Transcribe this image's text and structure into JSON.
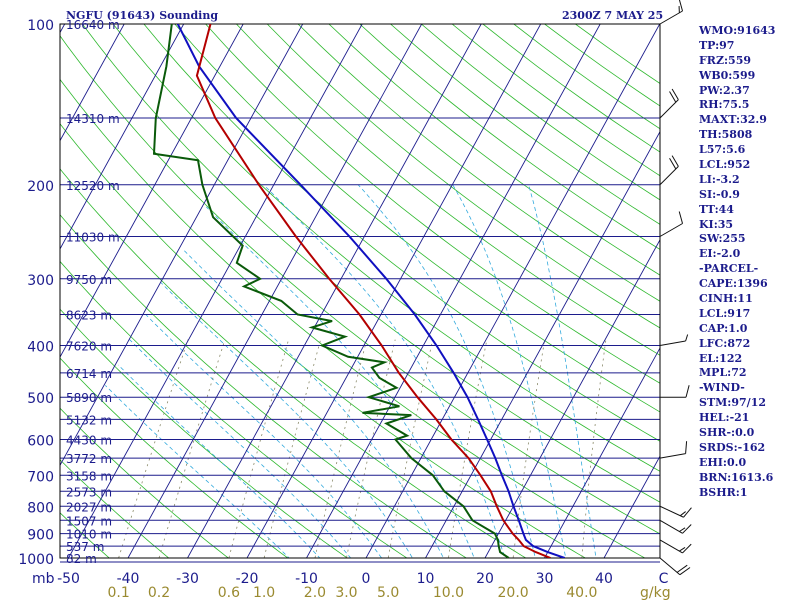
{
  "header": {
    "station_title": "NGFU (91643) Sounding",
    "time_title": "2300Z  7 MAY 25"
  },
  "indices": [
    "WMO:91643",
    "TP:97",
    "FRZ:559",
    "WB0:599",
    "PW:2.37",
    "RH:75.5",
    "MAXT:32.9",
    "TH:5808",
    "L57:5.6",
    "LCL:952",
    "LI:-3.2",
    "SI:-0.9",
    "TT:44",
    "KI:35",
    "SW:255",
    "EI:-2.0",
    "-PARCEL-",
    "CAPE:1396",
    "CINH:11",
    "LCL:917",
    "CAP:1.0",
    "LFC:872",
    "EL:122",
    "MPL:72",
    "-WIND-",
    "STM:97/12",
    "HEL:-21",
    "SHR-:0.0",
    "SRDS:-162",
    "EHI:0.0",
    "BRN:1613.6",
    "BSHR:1"
  ],
  "colors": {
    "isobar": "#1c1c8c",
    "isotherm": "#1c1c8c",
    "dry_adiabat": "#2eb82e",
    "moist_adiabat": "#33aadd",
    "mixing_ratio": "#8a8a6a",
    "temperature": "#b40000",
    "dewpoint": "#0a5a0a",
    "parcel": "#1010c0",
    "wind": "#111111",
    "label": "#1c1c8c",
    "mixing_label": "#9a8a30"
  },
  "chart_data": {
    "type": "skew-t log-p sounding",
    "title": "NGFU (91643) Sounding",
    "time": "2300Z  7 MAY 25",
    "y_axis_label": "mb",
    "mixing_ratio_unit": "g/kg",
    "pressure_range_mb": [
      1000,
      100
    ],
    "temperature_range_c": [
      -50,
      50
    ],
    "pressure_ticks": [
      {
        "p": 100,
        "label": "100"
      },
      {
        "p": 200,
        "label": "200"
      },
      {
        "p": 300,
        "label": "300"
      },
      {
        "p": 400,
        "label": "400"
      },
      {
        "p": 500,
        "label": "500"
      },
      {
        "p": 600,
        "label": "600"
      },
      {
        "p": 700,
        "label": "700"
      },
      {
        "p": 800,
        "label": "800"
      },
      {
        "p": 900,
        "label": "900"
      },
      {
        "p": 1000,
        "label": "1000"
      }
    ],
    "temperature_ticks": [
      {
        "t": -50,
        "label": "-50"
      },
      {
        "t": -40,
        "label": "-40"
      },
      {
        "t": -30,
        "label": "-30"
      },
      {
        "t": -20,
        "label": "-20"
      },
      {
        "t": -10,
        "label": "-10"
      },
      {
        "t": 0,
        "label": "0"
      },
      {
        "t": 10,
        "label": "10"
      },
      {
        "t": 20,
        "label": "20"
      },
      {
        "t": 30,
        "label": "30"
      },
      {
        "t": 40,
        "label": "40"
      },
      {
        "t": 50,
        "label": "C"
      }
    ],
    "mixing_ratio_ticks": [
      {
        "w": 0.1,
        "label": "0.1"
      },
      {
        "w": 0.2,
        "label": "0.2"
      },
      {
        "w": 0.6,
        "label": "0.6"
      },
      {
        "w": 1.0,
        "label": "1.0"
      },
      {
        "w": 2.0,
        "label": "2.0"
      },
      {
        "w": 3.0,
        "label": "3.0"
      },
      {
        "w": 5.0,
        "label": "5.0"
      },
      {
        "w": 10.0,
        "label": "10.0"
      },
      {
        "w": 20.0,
        "label": "20.0"
      },
      {
        "w": 40.0,
        "label": "40.0"
      }
    ],
    "height_levels": [
      {
        "p": 100,
        "label": "16640 m"
      },
      {
        "p": 150,
        "label": "14310 m"
      },
      {
        "p": 200,
        "label": "12520 m"
      },
      {
        "p": 250,
        "label": "11030 m"
      },
      {
        "p": 300,
        "label": "9750 m"
      },
      {
        "p": 350,
        "label": "8623 m"
      },
      {
        "p": 400,
        "label": "7620 m"
      },
      {
        "p": 450,
        "label": "6714 m"
      },
      {
        "p": 500,
        "label": "5890 m"
      },
      {
        "p": 550,
        "label": "5132 m"
      },
      {
        "p": 600,
        "label": "4430 m"
      },
      {
        "p": 650,
        "label": "3772 m"
      },
      {
        "p": 700,
        "label": "3158 m"
      },
      {
        "p": 750,
        "label": "2573 m"
      },
      {
        "p": 800,
        "label": "2027 m"
      },
      {
        "p": 850,
        "label": "1507 m"
      },
      {
        "p": 900,
        "label": "1010 m"
      },
      {
        "p": 950,
        "label": "537 m"
      },
      {
        "p": 1000,
        "label": "82 m"
      }
    ],
    "temperature_profile": [
      [
        1000,
        31.0
      ],
      [
        975,
        28.0
      ],
      [
        950,
        25.4
      ],
      [
        925,
        24.0
      ],
      [
        900,
        22.4
      ],
      [
        850,
        19.6
      ],
      [
        800,
        17.2
      ],
      [
        750,
        14.8
      ],
      [
        700,
        11.6
      ],
      [
        650,
        8.0
      ],
      [
        600,
        3.4
      ],
      [
        550,
        -1.0
      ],
      [
        500,
        -6.2
      ],
      [
        450,
        -11.6
      ],
      [
        400,
        -17.0
      ],
      [
        350,
        -23.6
      ],
      [
        300,
        -32.0
      ],
      [
        250,
        -41.5
      ],
      [
        200,
        -52.5
      ],
      [
        150,
        -66.0
      ],
      [
        125,
        -73.0
      ],
      [
        100,
        -75.5
      ]
    ],
    "dewpoint_profile": [
      [
        1000,
        24.0
      ],
      [
        975,
        22.0
      ],
      [
        950,
        21.2
      ],
      [
        925,
        20.5
      ],
      [
        900,
        19.4
      ],
      [
        850,
        14.4
      ],
      [
        800,
        11.6
      ],
      [
        750,
        7.0
      ],
      [
        700,
        3.6
      ],
      [
        650,
        -1.6
      ],
      [
        600,
        -6.0
      ],
      [
        590,
        -4.4
      ],
      [
        560,
        -9.0
      ],
      [
        540,
        -5.6
      ],
      [
        535,
        -14.0
      ],
      [
        520,
        -8.4
      ],
      [
        500,
        -14.4
      ],
      [
        480,
        -10.6
      ],
      [
        460,
        -14.4
      ],
      [
        440,
        -16.6
      ],
      [
        430,
        -15.0
      ],
      [
        420,
        -21.6
      ],
      [
        400,
        -27.0
      ],
      [
        385,
        -24.0
      ],
      [
        370,
        -30.4
      ],
      [
        360,
        -27.6
      ],
      [
        350,
        -34.0
      ],
      [
        330,
        -38.0
      ],
      [
        310,
        -45.6
      ],
      [
        300,
        -43.6
      ],
      [
        280,
        -49.0
      ],
      [
        260,
        -49.6
      ],
      [
        230,
        -57.2
      ],
      [
        200,
        -62.0
      ],
      [
        180,
        -65.0
      ],
      [
        175,
        -73.0
      ],
      [
        150,
        -76.0
      ],
      [
        120,
        -79.0
      ],
      [
        100,
        -82.0
      ]
    ],
    "parcel_profile": [
      [
        1000,
        33.4
      ],
      [
        975,
        30.0
      ],
      [
        950,
        27.0
      ],
      [
        925,
        25.2
      ],
      [
        900,
        24.2
      ],
      [
        850,
        22.2
      ],
      [
        800,
        20.0
      ],
      [
        750,
        17.8
      ],
      [
        700,
        15.2
      ],
      [
        650,
        12.5
      ],
      [
        600,
        9.4
      ],
      [
        550,
        6.0
      ],
      [
        500,
        2.2
      ],
      [
        450,
        -2.4
      ],
      [
        400,
        -7.8
      ],
      [
        350,
        -14.3
      ],
      [
        300,
        -22.4
      ],
      [
        250,
        -32.5
      ],
      [
        200,
        -45.5
      ],
      [
        150,
        -62.5
      ],
      [
        120,
        -73.5
      ],
      [
        100,
        -81.0
      ]
    ],
    "wind_barbs": [
      {
        "p": 1000,
        "dir": 130,
        "kt": 20
      },
      {
        "p": 925,
        "dir": 120,
        "kt": 15
      },
      {
        "p": 850,
        "dir": 120,
        "kt": 15
      },
      {
        "p": 800,
        "dir": 115,
        "kt": 15
      },
      {
        "p": 650,
        "dir": 80,
        "kt": 10
      },
      {
        "p": 500,
        "dir": 90,
        "kt": 10
      },
      {
        "p": 400,
        "dir": 80,
        "kt": 5
      },
      {
        "p": 250,
        "dir": 60,
        "kt": 10
      },
      {
        "p": 200,
        "dir": 45,
        "kt": 20
      },
      {
        "p": 150,
        "dir": 45,
        "kt": 20
      },
      {
        "p": 100,
        "dir": 60,
        "kt": 15
      }
    ]
  }
}
